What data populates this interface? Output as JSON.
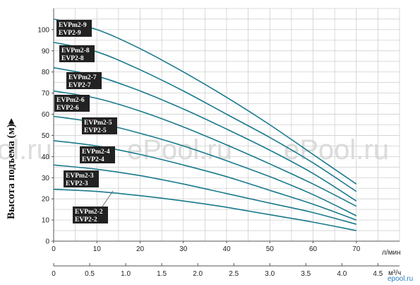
{
  "chart_data": {
    "type": "line",
    "xlabel": "л/мин",
    "x2label": "м³/ч",
    "ylabel": "Высота подъема (м)▸",
    "xlim": [
      0,
      80
    ],
    "ylim": [
      0,
      110
    ],
    "xticks": [
      0,
      10,
      20,
      30,
      40,
      50,
      60,
      70
    ],
    "yticks": [
      0,
      10,
      20,
      30,
      40,
      50,
      60,
      70,
      80,
      90,
      100
    ],
    "x2ticks": [
      "0",
      "0.5",
      "1.0",
      "1.5",
      "2.0",
      "2.5",
      "3.0",
      "3.5",
      "4.0",
      "4.5"
    ],
    "x2lim": [
      0,
      4.8
    ],
    "grid": true,
    "x": [
      0,
      10,
      20,
      30,
      40,
      50,
      60,
      70
    ],
    "series": [
      {
        "labels": [
          "EVPm2-9",
          "EVP2-9"
        ],
        "values": [
          105,
          100,
          91,
          80,
          68,
          55,
          41,
          27
        ]
      },
      {
        "labels": [
          "EVPm2-8",
          "EVP2-8"
        ],
        "values": [
          94,
          89.5,
          81,
          71,
          60,
          49,
          37,
          23.5
        ]
      },
      {
        "labels": [
          "EVPm2-7",
          "EVP2-7"
        ],
        "values": [
          82,
          78,
          71,
          62.5,
          53,
          43,
          32,
          19
        ]
      },
      {
        "labels": [
          "EVPm2-6",
          "EVP2-6"
        ],
        "values": [
          71,
          67.5,
          61.5,
          54,
          45.5,
          36.5,
          27,
          16.5
        ]
      },
      {
        "labels": [
          "EVPm2-5",
          "EVP2-5"
        ],
        "values": [
          59,
          56,
          51,
          45,
          38,
          30.5,
          22,
          12
        ]
      },
      {
        "labels": [
          "EVPm2-4",
          "EVP2-4"
        ],
        "values": [
          47.5,
          45,
          41,
          36,
          30.5,
          24,
          17.5,
          10
        ]
      },
      {
        "labels": [
          "EVPm2-3",
          "EVP2-3"
        ],
        "values": [
          36,
          34,
          31,
          27,
          22.5,
          18,
          13.5,
          8
        ]
      },
      {
        "labels": [
          "EVPm2-2",
          "EVP2-2"
        ],
        "values": [
          24.5,
          23.5,
          21.5,
          19,
          16,
          12.5,
          9,
          5
        ]
      }
    ],
    "colors": {
      "curve": "#1a7a8c",
      "grid": "#cfcfcf",
      "axis": "#555555",
      "label_bg": "#222222"
    }
  },
  "watermarks": [
    "ol.ru",
    "ePool.ru",
    "ePool.ru"
  ],
  "corner_mark": "epool.ru"
}
